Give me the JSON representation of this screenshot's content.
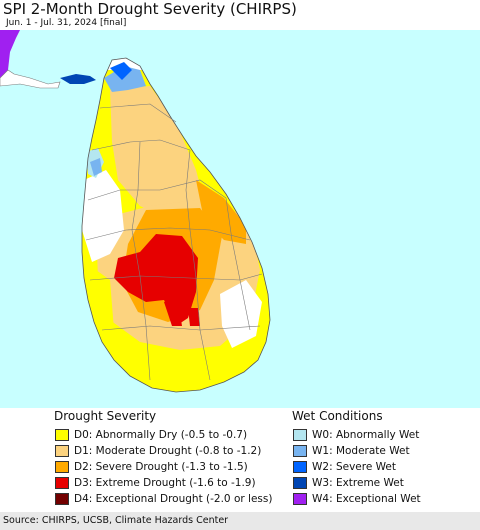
{
  "header": {
    "title": "SPI 2-Month Drought Severity (CHIRPS)",
    "subtitle": "Jun. 1 - Jul. 31, 2024 [final]"
  },
  "map": {
    "colors": {
      "ocean": "#c8ffff",
      "land_none": "#ffffff",
      "D0": "#ffff00",
      "D1": "#fcd37f",
      "D2": "#ffaa00",
      "D3": "#e60000",
      "D4": "#730000",
      "W0": "#b4e6f0",
      "W1": "#78b4f0",
      "W2": "#0064ff",
      "W3": "#0046b4",
      "W4": "#a020f0",
      "boundary": "#7a7a7a"
    }
  },
  "legend": {
    "drought_title": "Drought Severity",
    "wet_title": "Wet Conditions",
    "drought": [
      {
        "label": "D0: Abnormally Dry (-0.5 to -0.7)",
        "color": "#ffff00"
      },
      {
        "label": "D1: Moderate Drought (-0.8 to -1.2)",
        "color": "#fcd37f"
      },
      {
        "label": "D2: Severe Drought (-1.3 to -1.5)",
        "color": "#ffaa00"
      },
      {
        "label": "D3: Extreme Drought (-1.6 to -1.9)",
        "color": "#e60000"
      },
      {
        "label": "D4: Exceptional Drought (-2.0 or less)",
        "color": "#730000"
      }
    ],
    "wet": [
      {
        "label": "W0: Abnormally Wet",
        "color": "#b4e6f0"
      },
      {
        "label": "W1: Moderate Wet",
        "color": "#78b4f0"
      },
      {
        "label": "W2: Severe Wet",
        "color": "#0064ff"
      },
      {
        "label": "W3: Extreme Wet",
        "color": "#0046b4"
      },
      {
        "label": "W4: Exceptional Wet",
        "color": "#a020f0"
      }
    ]
  },
  "footer": {
    "source": "Source: CHIRPS, UCSB, Climate Hazards Center"
  }
}
